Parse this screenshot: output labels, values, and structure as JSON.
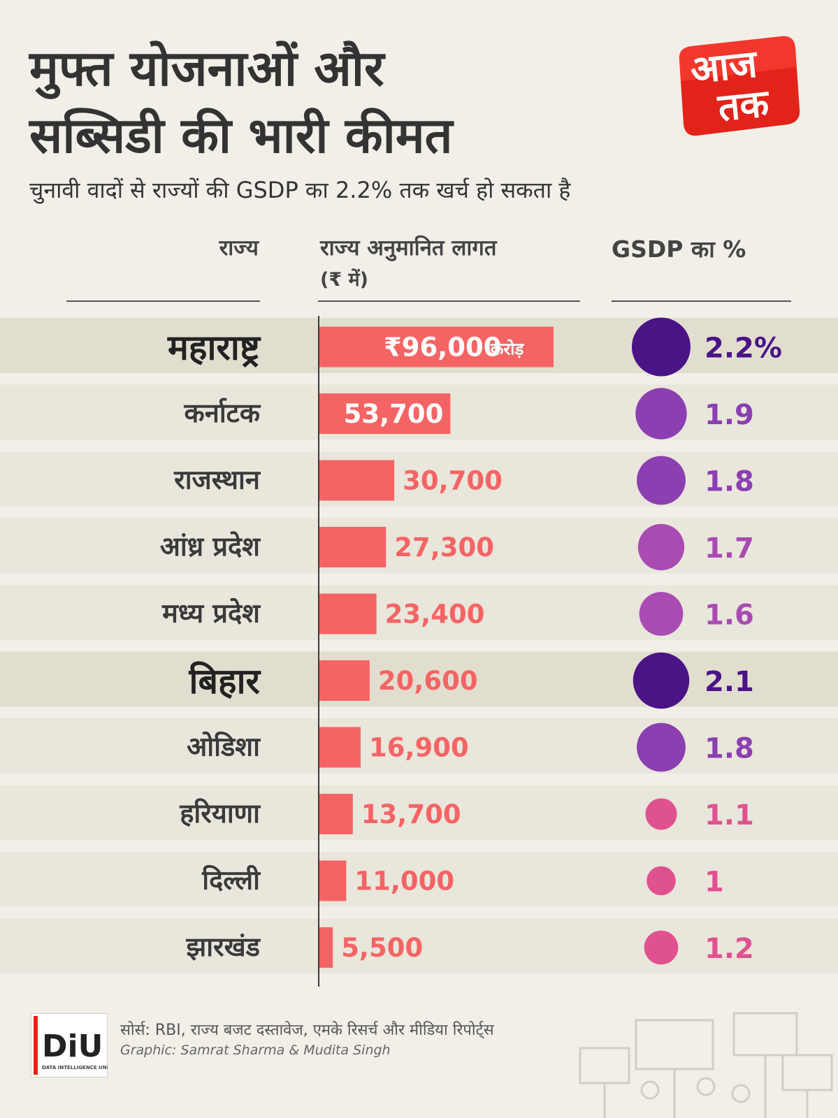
{
  "title": {
    "line1": "मुफ्त योजनाओं और",
    "line2": "सब्सिडी की भारी कीमत"
  },
  "subtitle": "चुनावी वादों से राज्यों की GSDP का 2.2% तक खर्च हो सकता है",
  "brand": {
    "line1": "आज",
    "line2": "तक",
    "color": "#e2231a"
  },
  "headers": {
    "state": "राज्य",
    "cost": "राज्य अनुमानित लागत",
    "cost_unit": "(₹ में)",
    "gsdp": "GSDP का %"
  },
  "footer": {
    "source": "सोर्स: RBI, राज्य बजट दस्तावेज, एमके रिसर्च और मीडिया रिपोर्ट्स",
    "credit": "Graphic: Samrat Sharma & Mudita Singh",
    "logo_text": "DiU",
    "logo_subtext": "DATA INTELLIGENCE UNIT"
  },
  "colors": {
    "bar": "#f56464",
    "highlight_band": "#e2decf",
    "band": "#e9e6dc",
    "bubble_dark": "#4a1486",
    "bubble_mid": "#8b3fb0",
    "bubble_light": "#a94bb3",
    "bubble_pink": "#e0528f"
  },
  "chart_data": {
    "type": "bar",
    "title": "मुफ्त योजनाओं और सब्सिडी की भारी कीमत",
    "xlabel": "राज्य अनुमानित लागत (₹ में)",
    "categories": [
      "महाराष्ट्र",
      "कर्नाटक",
      "राजस्थान",
      "आंध्र प्रदेश",
      "मध्य प्रदेश",
      "बिहार",
      "ओडिशा",
      "हरियाणा",
      "दिल्ली",
      "झारखंड"
    ],
    "series": [
      {
        "name": "राज्य अनुमानित लागत",
        "unit": "करोड़",
        "values": [
          96000,
          53700,
          30700,
          27300,
          23400,
          20600,
          16900,
          13700,
          11000,
          5500
        ]
      },
      {
        "name": "GSDP का %",
        "values": [
          2.2,
          1.9,
          1.8,
          1.7,
          1.6,
          2.1,
          1.8,
          1.1,
          1.0,
          1.2
        ]
      }
    ],
    "value_labels": [
      "₹96,000",
      "53,700",
      "30,700",
      "27,300",
      "23,400",
      "20,600",
      "16,900",
      "13,700",
      "11,000",
      "5,500"
    ],
    "first_value_suffix": "करोड़",
    "gsdp_labels": [
      "2.2%",
      "1.9",
      "1.8",
      "1.7",
      "1.6",
      "2.1",
      "1.8",
      "1.1",
      "1",
      "1.2"
    ],
    "highlighted": [
      "महाराष्ट्र",
      "बिहार"
    ],
    "xlim": [
      0,
      96000
    ]
  }
}
